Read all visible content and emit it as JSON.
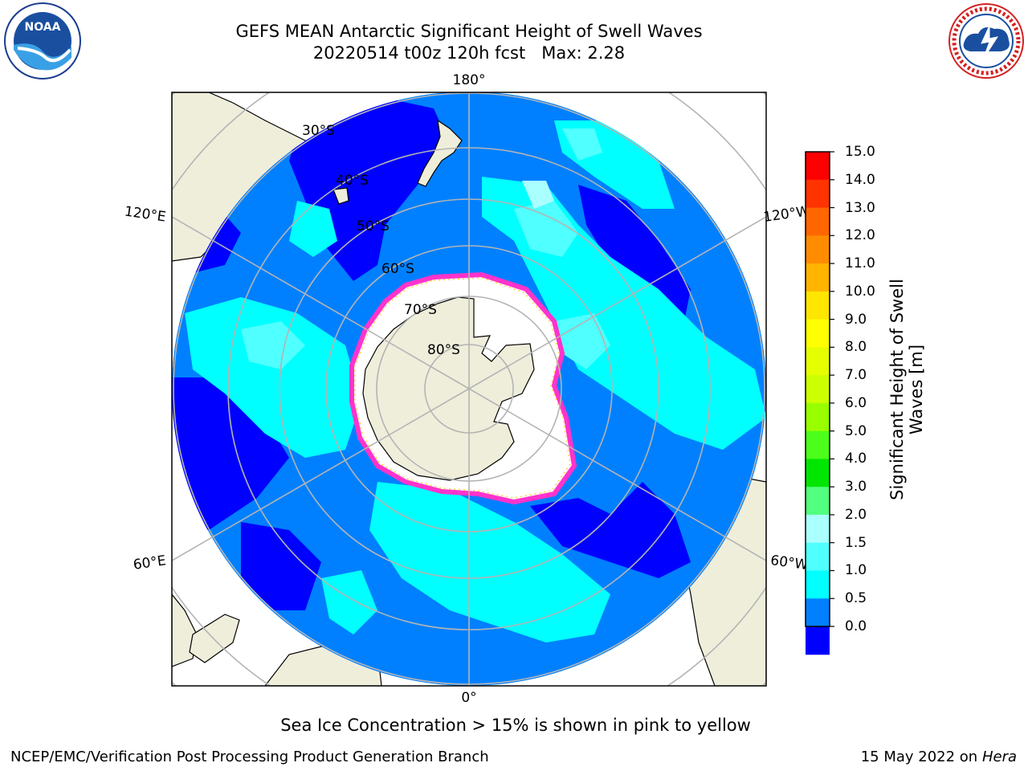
{
  "header": {
    "title": "GEFS MEAN Antarctic Significant Height of Swell Waves",
    "subtitle_run": "20220514 t00z 120h fcst",
    "subtitle_max": "Max: 2.28"
  },
  "map": {
    "projection": "south-polar-stereographic",
    "lon_labels": {
      "top": "180°",
      "bottom": "0°",
      "left_upper": "120°E",
      "left_lower": "60°E",
      "right_upper": "120°W",
      "right_lower": "60°W"
    },
    "lat_labels": [
      "30°S",
      "40°S",
      "50°S",
      "60°S",
      "70°S",
      "80°S"
    ],
    "colors": {
      "land": "#efeedb",
      "ice": "#ffffff",
      "ice_edge": "#ff33cc",
      "ice_edge_inner": "#ffd23a",
      "grid": "#b4b4b4",
      "coast": "#000000"
    }
  },
  "colorbar": {
    "title_line1": "Significant Height of Swell",
    "title_line2": "Waves [m]",
    "labels": [
      "15.0",
      "14.0",
      "13.0",
      "12.0",
      "11.0",
      "10.0",
      "9.0",
      "8.0",
      "7.0",
      "6.0",
      "5.0",
      "4.0",
      "3.0",
      "2.0",
      "1.5",
      "1.0",
      "0.5",
      "0.0"
    ],
    "colors_top_to_bottom": [
      "#ff0000",
      "#ff3300",
      "#ff6600",
      "#ff8c00",
      "#ffb400",
      "#ffe600",
      "#ffff00",
      "#e6ff00",
      "#ccff00",
      "#99ff00",
      "#4cff1a",
      "#00e600",
      "#52ff7f",
      "#aaffff",
      "#50ffff",
      "#00ffff",
      "#0080ff",
      "#0000ff"
    ]
  },
  "note": "Sea Ice Concentration > 15% is shown in pink to yellow",
  "footer": {
    "left": "NCEP/EMC/Verification Post Processing Product Generation Branch",
    "right_date": "15 May 2022 on",
    "right_host": "Hera"
  },
  "logos": {
    "noaa_text": "NOAA",
    "nws_text": "NATIONAL WEATHER SERVICE"
  }
}
